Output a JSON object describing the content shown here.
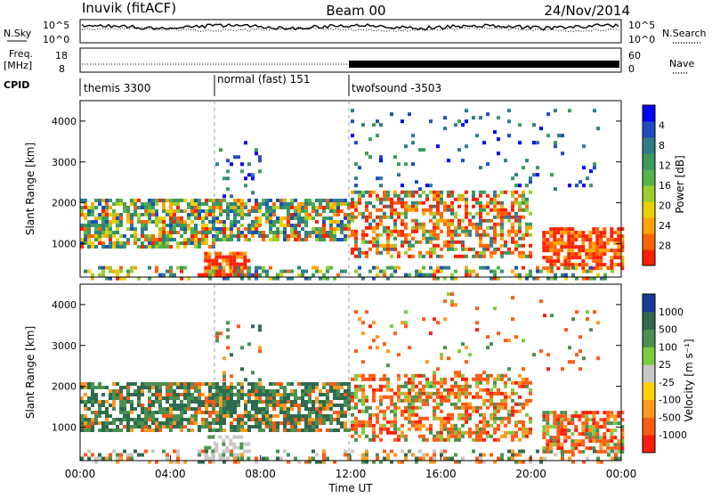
{
  "header": {
    "station": "Inuvik (fitACF)",
    "beam": "Beam 00",
    "date": "24/Nov/2014"
  },
  "left_labels": {
    "nsky": "N.Sky",
    "freq": "Freq.",
    "freq_unit": "[MHz]",
    "cpid": "CPID"
  },
  "right_labels": {
    "nsearch": "N.Search",
    "nave": "Nave"
  },
  "chart_data": [
    {
      "type": "line",
      "panel": "noise",
      "series": [
        {
          "name": "N.Sky",
          "style": "solid"
        },
        {
          "name": "N.Search",
          "style": "dotted"
        }
      ],
      "y_ticks_left": [
        "10^5",
        "10^0"
      ],
      "y_ticks_right": [
        "10^5",
        "10^0"
      ],
      "note": "noise level stays near the upper part of the log scale throughout the day"
    },
    {
      "type": "line",
      "panel": "frequency",
      "y_ticks_left": [
        "18",
        "8"
      ],
      "y_ticks_right": [
        "60",
        "0"
      ],
      "series": [
        {
          "name": "Freq.",
          "approx_value_mhz": 10
        },
        {
          "name": "Nave",
          "note": "dense averaging spikes after 12:00 UT"
        }
      ]
    },
    {
      "type": "table",
      "panel": "cpid",
      "segments": [
        {
          "label": "themis 3300",
          "start": "00:00",
          "end": "06:00"
        },
        {
          "label": "normal (fast) 151",
          "start": "06:00",
          "end": "12:00"
        },
        {
          "label": "twofsound -3503",
          "start": "12:00",
          "end": "24:00"
        }
      ]
    },
    {
      "type": "heatmap",
      "panel": "power",
      "ylabel": "Slant Range [km]",
      "yticks": [
        1000,
        2000,
        3000,
        4000
      ],
      "ylim": [
        180,
        4500
      ],
      "colorbar": {
        "label": "Power [dB]",
        "ticks": [
          "4",
          "8",
          "12",
          "16",
          "20",
          "24",
          "28"
        ],
        "colors": [
          "#0000ff",
          "#1e4dbe",
          "#2f7d8a",
          "#3c9a5c",
          "#55b34a",
          "#9acd32",
          "#e8d000",
          "#ffa500",
          "#ff6400",
          "#ff2000"
        ]
      }
    },
    {
      "type": "heatmap",
      "panel": "velocity",
      "ylabel": "Slant Range [km]",
      "yticks": [
        1000,
        2000,
        3000,
        4000
      ],
      "ylim": [
        180,
        4500
      ],
      "xlabel": "Time UT",
      "xticks": [
        "00:00",
        "04:00",
        "08:00",
        "12:00",
        "16:00",
        "20:00",
        "00:00"
      ],
      "colorbar": {
        "label": "Velocity [m s⁻¹]",
        "ticks": [
          "1000",
          "500",
          "100",
          "25",
          "-25",
          "-100",
          "-500",
          "-1000"
        ],
        "colors": [
          "#1a3a9a",
          "#2e6b4e",
          "#4a9050",
          "#7ccc40",
          "#c8c8c8",
          "#ffd200",
          "#ff9a1e",
          "#ff5a14",
          "#ff1e0a"
        ]
      }
    }
  ],
  "scatter_regions": [
    {
      "panel": "power",
      "x0": 0,
      "x1": 6,
      "r0": 900,
      "r1": 2100,
      "density": 0.72,
      "pal": "mixed"
    },
    {
      "panel": "power",
      "x0": 5.5,
      "x1": 7.5,
      "r0": 200,
      "r1": 800,
      "density": 0.85,
      "pal": "hot"
    },
    {
      "panel": "power",
      "x0": 6,
      "x1": 12,
      "r0": 1100,
      "r1": 2100,
      "density": 0.7,
      "pal": "mixed"
    },
    {
      "panel": "power",
      "x0": 12,
      "x1": 20,
      "r0": 700,
      "r1": 2300,
      "density": 0.55,
      "pal": "mixedhot"
    },
    {
      "panel": "power",
      "x0": 20.5,
      "x1": 24,
      "r0": 400,
      "r1": 1400,
      "density": 0.8,
      "pal": "hot"
    },
    {
      "panel": "power",
      "x0": 0,
      "x1": 24,
      "r0": 180,
      "r1": 450,
      "density": 0.35,
      "pal": "mixed"
    },
    {
      "panel": "power",
      "x0": 6,
      "x1": 8,
      "r0": 2200,
      "r1": 3600,
      "density": 0.12,
      "pal": "cool"
    },
    {
      "panel": "power",
      "x0": 12,
      "x1": 23,
      "r0": 2300,
      "r1": 4300,
      "density": 0.05,
      "pal": "cool"
    },
    {
      "panel": "velocity",
      "x0": 0,
      "x1": 12,
      "r0": 900,
      "r1": 2100,
      "density": 0.72,
      "pal": "vneg"
    },
    {
      "panel": "velocity",
      "x0": 5.5,
      "x1": 7.5,
      "r0": 250,
      "r1": 800,
      "density": 0.6,
      "pal": "vzero"
    },
    {
      "panel": "velocity",
      "x0": 12,
      "x1": 20,
      "r0": 700,
      "r1": 2300,
      "density": 0.55,
      "pal": "vpos"
    },
    {
      "panel": "velocity",
      "x0": 20.5,
      "x1": 24,
      "r0": 400,
      "r1": 1400,
      "density": 0.7,
      "pal": "vpos"
    },
    {
      "panel": "velocity",
      "x0": 0,
      "x1": 24,
      "r0": 180,
      "r1": 450,
      "density": 0.3,
      "pal": "vmix"
    },
    {
      "panel": "velocity",
      "x0": 6,
      "x1": 8,
      "r0": 2200,
      "r1": 3600,
      "density": 0.12,
      "pal": "vneg"
    },
    {
      "panel": "velocity",
      "x0": 12,
      "x1": 23,
      "r0": 2300,
      "r1": 4300,
      "density": 0.05,
      "pal": "vpos"
    }
  ]
}
